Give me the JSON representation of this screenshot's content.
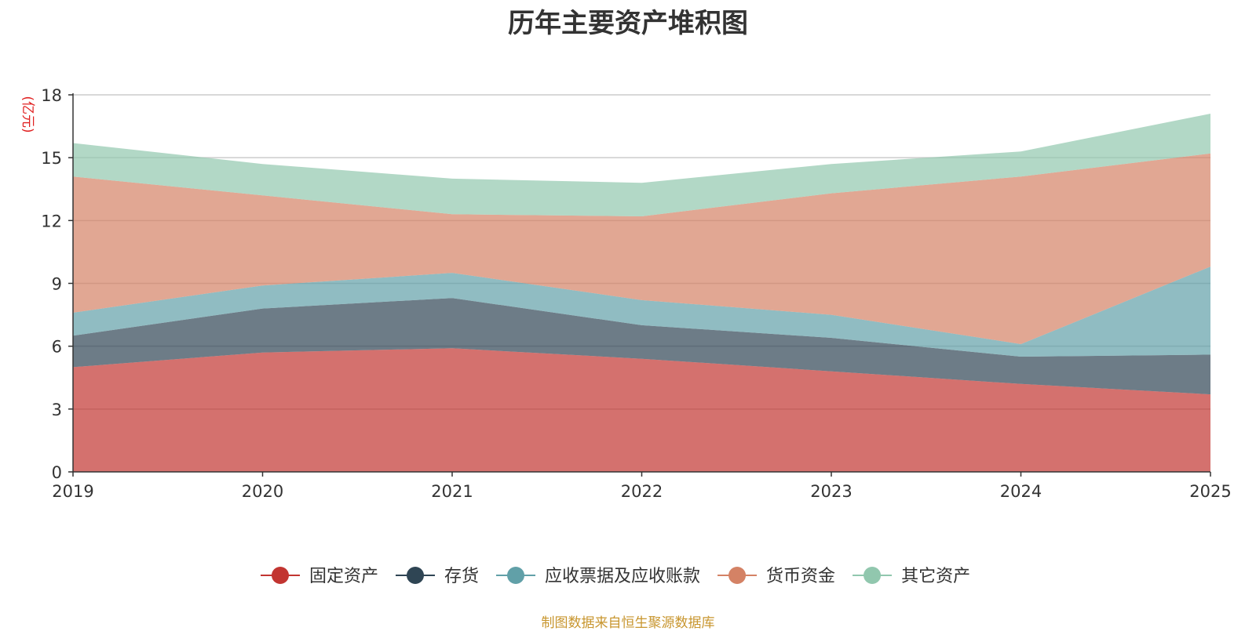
{
  "chart_data": {
    "type": "area",
    "stacked": true,
    "title": "历年主要资产堆积图",
    "ylabel": "(亿元)",
    "categories": [
      "2019",
      "2020",
      "2021",
      "2022",
      "2023",
      "2024",
      "2025"
    ],
    "ylim": [
      0,
      18
    ],
    "yticks": [
      0,
      3,
      6,
      9,
      12,
      15,
      18
    ],
    "grid": true,
    "legend_position": "bottom-center",
    "series": [
      {
        "name": "固定资产",
        "color": "#c23531",
        "values": [
          5.0,
          5.7,
          5.9,
          5.4,
          4.8,
          4.2,
          3.7
        ]
      },
      {
        "name": "存货",
        "color": "#2f4554",
        "values": [
          1.5,
          2.1,
          2.4,
          1.6,
          1.6,
          1.3,
          1.9
        ]
      },
      {
        "name": "应收票据及应收账款",
        "color": "#61a0a8",
        "values": [
          1.1,
          1.1,
          1.2,
          1.2,
          1.1,
          0.6,
          4.2
        ]
      },
      {
        "name": "货币资金",
        "color": "#d48265",
        "values": [
          6.5,
          4.3,
          2.8,
          4.0,
          5.8,
          8.0,
          5.4
        ]
      },
      {
        "name": "其它资产",
        "color": "#91c7ae",
        "values": [
          1.6,
          1.5,
          1.7,
          1.6,
          1.4,
          1.2,
          1.9
        ]
      }
    ]
  },
  "source_note": "制图数据来自恒生聚源数据库"
}
